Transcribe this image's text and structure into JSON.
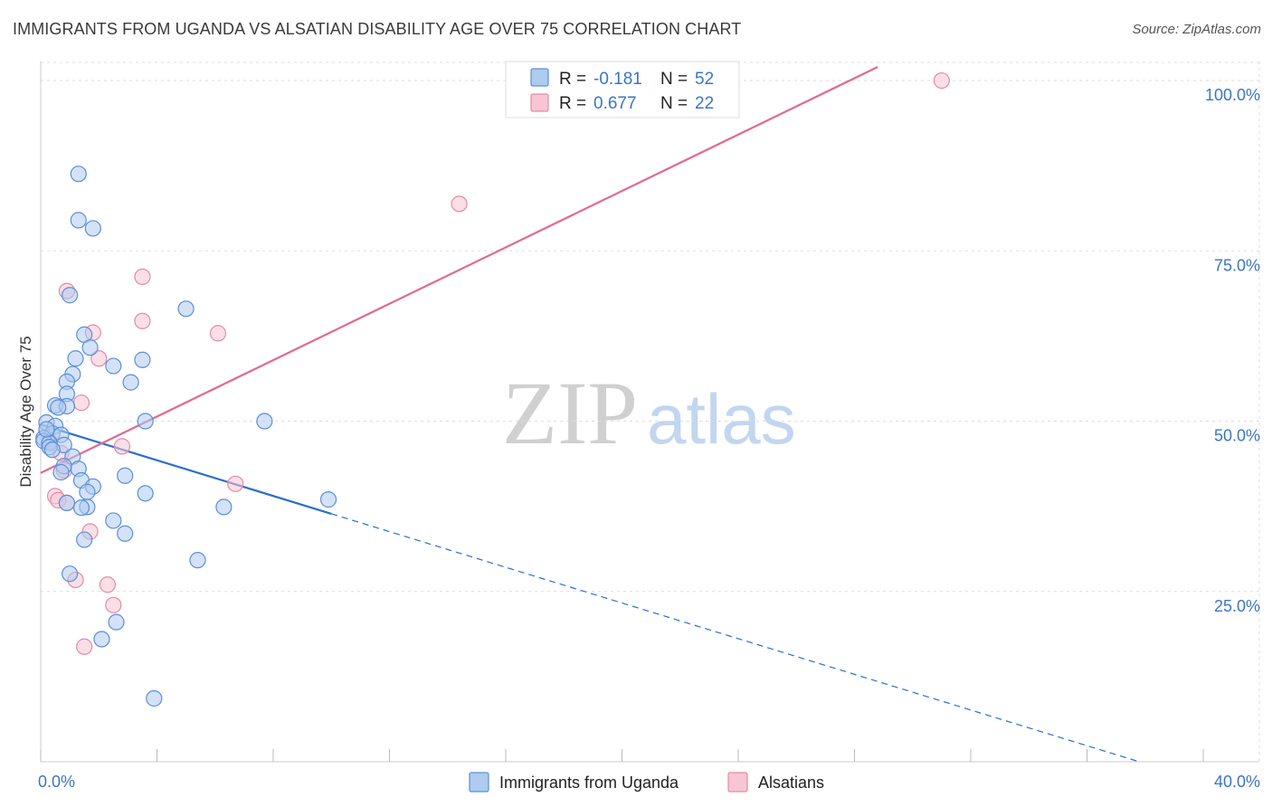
{
  "header": {
    "title": "IMMIGRANTS FROM UGANDA VS ALSATIAN DISABILITY AGE OVER 75 CORRELATION CHART",
    "source": "Source: ZipAtlas.com"
  },
  "watermark": {
    "zip": "ZIP",
    "atlas": "atlas"
  },
  "colors": {
    "uganda_fill": "#aecbf0",
    "uganda_stroke": "#5b8fd9",
    "uganda_line": "#2a6fcf",
    "alsatian_fill": "#f8c5d4",
    "alsatian_stroke": "#e58aa6",
    "alsatian_line": "#e2698f",
    "accent_text": "#3b74c7",
    "grid": "#dddddd"
  },
  "chart_data": {
    "type": "scatter",
    "title": "IMMIGRANTS FROM UGANDA VS ALSATIAN DISABILITY AGE OVER 75 CORRELATION CHART",
    "xlabel": "",
    "ylabel": "Disability Age Over 75",
    "xlim": [
      0,
      40
    ],
    "ylim": [
      0,
      102
    ],
    "x_tick_labels": {
      "min": "0.0%",
      "max": "40.0%"
    },
    "y_ticks": [
      {
        "value": 25,
        "label": "25.0%"
      },
      {
        "value": 50,
        "label": "50.0%"
      },
      {
        "value": 75,
        "label": "75.0%"
      },
      {
        "value": 100,
        "label": "100.0%"
      }
    ],
    "grid": true,
    "legend": {
      "position": "top-center",
      "rows": [
        {
          "r_label": "R = ",
          "r_value": "-0.181",
          "n_label": "N = ",
          "n_value": "52"
        },
        {
          "r_label": "R = ",
          "r_value": "0.677",
          "n_label": "N = ",
          "n_value": "22"
        }
      ]
    },
    "series": [
      {
        "name": "Immigrants from Uganda",
        "points": [
          [
            1.3,
            86.3
          ],
          [
            1.3,
            79.5
          ],
          [
            1.8,
            78.3
          ],
          [
            1.0,
            68.5
          ],
          [
            5.0,
            66.5
          ],
          [
            1.5,
            62.7
          ],
          [
            1.7,
            60.8
          ],
          [
            1.2,
            59.2
          ],
          [
            3.5,
            59.0
          ],
          [
            2.5,
            58.1
          ],
          [
            1.1,
            56.9
          ],
          [
            0.9,
            55.8
          ],
          [
            3.1,
            55.7
          ],
          [
            0.9,
            54.0
          ],
          [
            0.5,
            52.3
          ],
          [
            0.9,
            52.2
          ],
          [
            0.6,
            52.0
          ],
          [
            0.2,
            49.8
          ],
          [
            3.6,
            50.0
          ],
          [
            7.7,
            50.0
          ],
          [
            0.5,
            49.3
          ],
          [
            0.4,
            48.2
          ],
          [
            0.7,
            48.0
          ],
          [
            0.1,
            47.5
          ],
          [
            0.1,
            47.1
          ],
          [
            0.3,
            46.8
          ],
          [
            0.8,
            46.5
          ],
          [
            0.3,
            46.2
          ],
          [
            0.4,
            45.8
          ],
          [
            1.1,
            44.8
          ],
          [
            0.8,
            43.4
          ],
          [
            1.3,
            43.0
          ],
          [
            0.7,
            42.5
          ],
          [
            1.4,
            41.3
          ],
          [
            1.8,
            40.4
          ],
          [
            2.9,
            42.0
          ],
          [
            1.6,
            39.6
          ],
          [
            3.6,
            39.4
          ],
          [
            9.9,
            38.5
          ],
          [
            0.9,
            38.0
          ],
          [
            1.6,
            37.4
          ],
          [
            1.4,
            37.3
          ],
          [
            6.3,
            37.4
          ],
          [
            2.5,
            35.4
          ],
          [
            2.9,
            33.5
          ],
          [
            1.5,
            32.6
          ],
          [
            5.4,
            29.6
          ],
          [
            1.0,
            27.6
          ],
          [
            2.6,
            20.5
          ],
          [
            2.1,
            18.0
          ],
          [
            3.9,
            9.3
          ],
          [
            0.2,
            48.8
          ]
        ]
      },
      {
        "name": "Alsatians",
        "points": [
          [
            31.0,
            100.0
          ],
          [
            14.4,
            81.9
          ],
          [
            3.5,
            71.2
          ],
          [
            0.9,
            69.1
          ],
          [
            3.5,
            64.7
          ],
          [
            6.1,
            62.9
          ],
          [
            1.8,
            63.0
          ],
          [
            2.0,
            59.2
          ],
          [
            1.4,
            52.7
          ],
          [
            2.8,
            46.3
          ],
          [
            0.7,
            45.3
          ],
          [
            0.8,
            42.8
          ],
          [
            6.7,
            40.8
          ],
          [
            0.5,
            39.0
          ],
          [
            0.6,
            38.4
          ],
          [
            0.9,
            38.0
          ],
          [
            1.7,
            33.8
          ],
          [
            1.2,
            26.7
          ],
          [
            2.3,
            26.0
          ],
          [
            2.5,
            23.0
          ],
          [
            1.5,
            16.9
          ],
          [
            0.3,
            47.0
          ]
        ]
      }
    ],
    "trendlines": [
      {
        "series": "Immigrants from Uganda",
        "x_start": 0,
        "y_start": 49.5,
        "x_solid_end": 10,
        "x_end": 37.8,
        "y_end": 0
      },
      {
        "series": "Alsatians",
        "x_start": 0,
        "y_start": 42.4,
        "x_end": 28.8,
        "y_end": 102
      }
    ]
  },
  "bottom_legend": {
    "items": [
      {
        "label": "Immigrants from Uganda"
      },
      {
        "label": "Alsatians"
      }
    ]
  }
}
